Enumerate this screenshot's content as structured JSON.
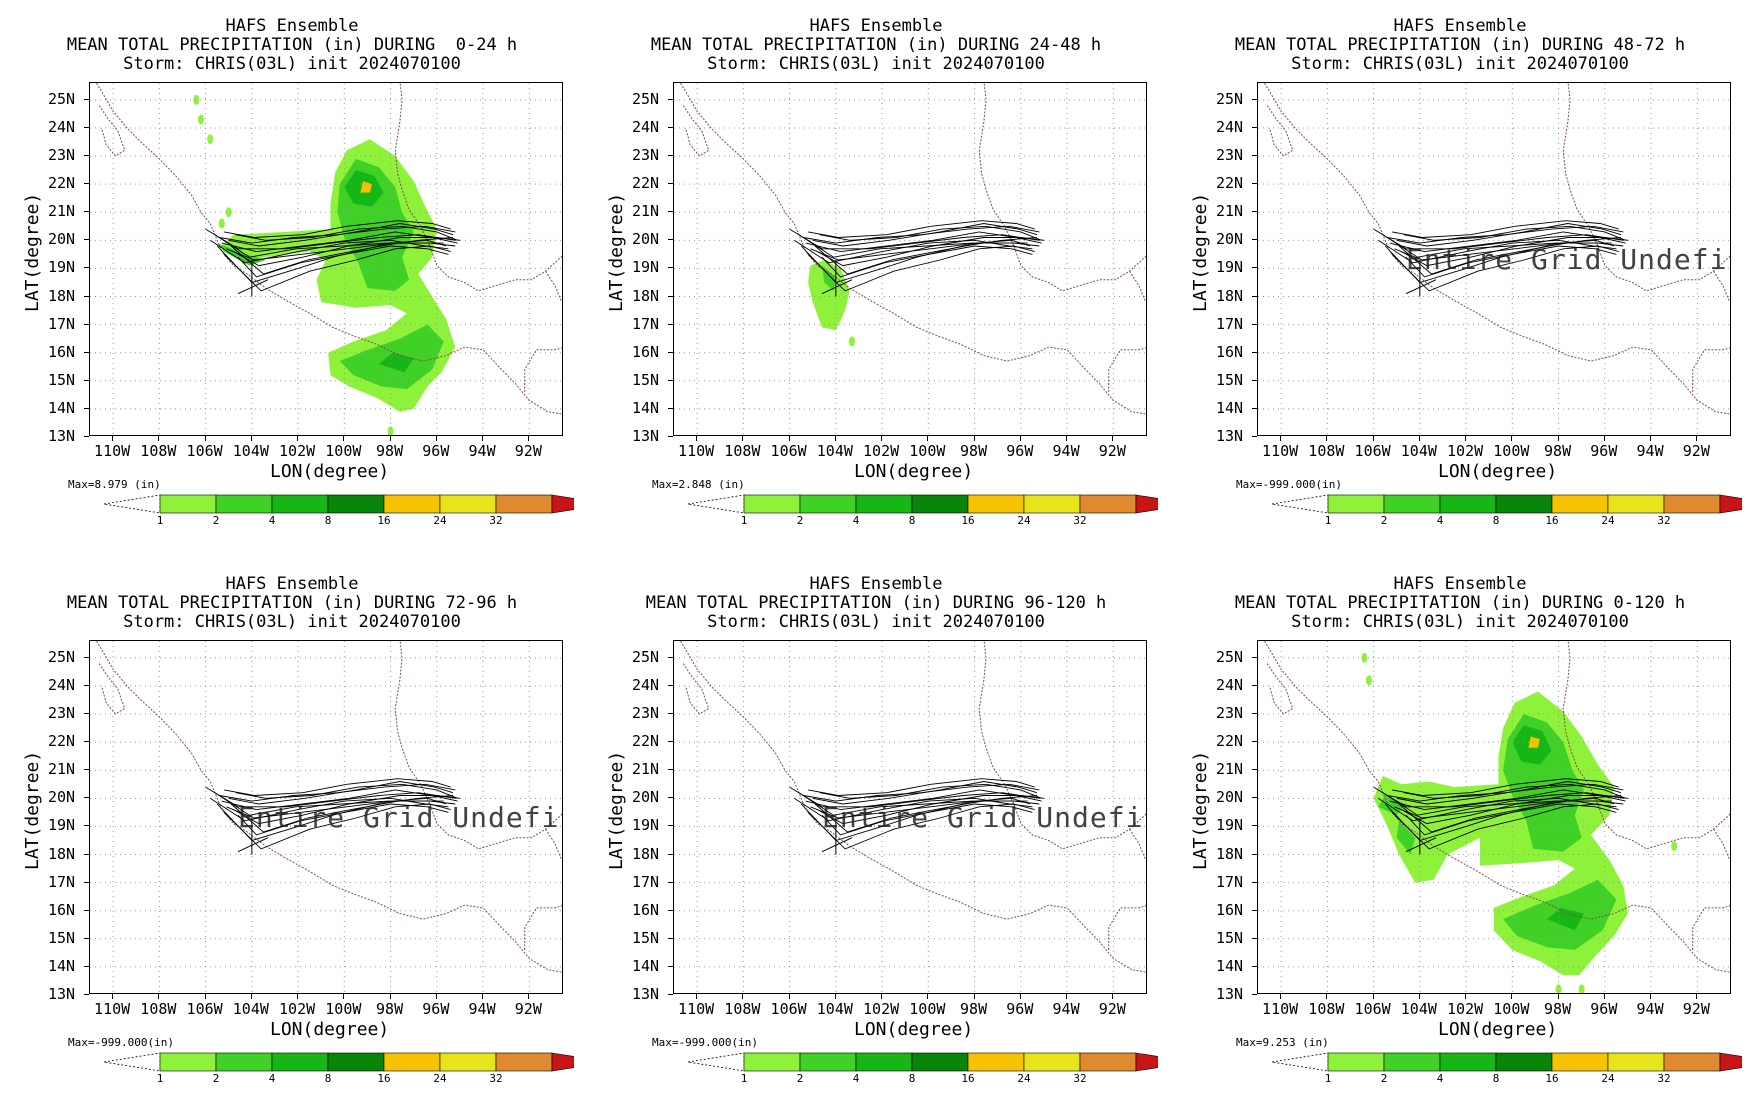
{
  "figure": {
    "model": "HAFS Ensemble",
    "storm_line": "Storm: CHRIS(03L) init 2024070100",
    "x_axis_label": "LON(degree)",
    "y_axis_label": "LAT(degree)",
    "lat_ticks": [
      "25N",
      "24N",
      "23N",
      "22N",
      "21N",
      "20N",
      "19N",
      "18N",
      "17N",
      "16N",
      "15N",
      "14N",
      "13N"
    ],
    "lon_ticks": [
      "110W",
      "108W",
      "106W",
      "104W",
      "102W",
      "100W",
      "98W",
      "96W",
      "94W",
      "92W"
    ],
    "units_label": "(in)",
    "colorbar_levels": [
      "1",
      "2",
      "4",
      "8",
      "16",
      "24",
      "32"
    ],
    "colorbar_colors": [
      "#8ff23a",
      "#3fd126",
      "#17b617",
      "#088408",
      "#f7c200",
      "#e8e41c",
      "#e0892e",
      "#c81414"
    ],
    "undefined_text": "Entire Grid Undefined",
    "precip_colors": {
      "light": "#8ff23a",
      "mid": "#3fd126",
      "dark": "#17b617",
      "darker": "#088408",
      "yellow": "#f7c200"
    }
  },
  "panels": [
    {
      "title_line2": "MEAN TOTAL PRECIPITATION (in) DURING  0-24 h",
      "max_label": "Max=8.979",
      "units_label": "(in)",
      "undefined": false,
      "precip": "day1"
    },
    {
      "title_line2": "MEAN TOTAL PRECIPITATION (in) DURING 24-48 h",
      "max_label": "Max=2.848",
      "units_label": "(in)",
      "undefined": false,
      "precip": "day2"
    },
    {
      "title_line2": "MEAN TOTAL PRECIPITATION (in) DURING 48-72 h",
      "max_label": "Max=-999.000(in)",
      "units_label": "",
      "undefined": true,
      "precip": "none"
    },
    {
      "title_line2": "MEAN TOTAL PRECIPITATION (in) DURING 72-96 h",
      "max_label": "Max=-999.000(in)",
      "units_label": "",
      "undefined": true,
      "precip": "none"
    },
    {
      "title_line2": "MEAN TOTAL PRECIPITATION (in) DURING 96-120 h",
      "max_label": "Max=-999.000(in)",
      "units_label": "",
      "undefined": true,
      "precip": "none"
    },
    {
      "title_line2": "MEAN TOTAL PRECIPITATION (in) DURING 0-120 h",
      "max_label": "Max=9.253",
      "units_label": "(in)",
      "undefined": false,
      "precip": "total"
    }
  ]
}
